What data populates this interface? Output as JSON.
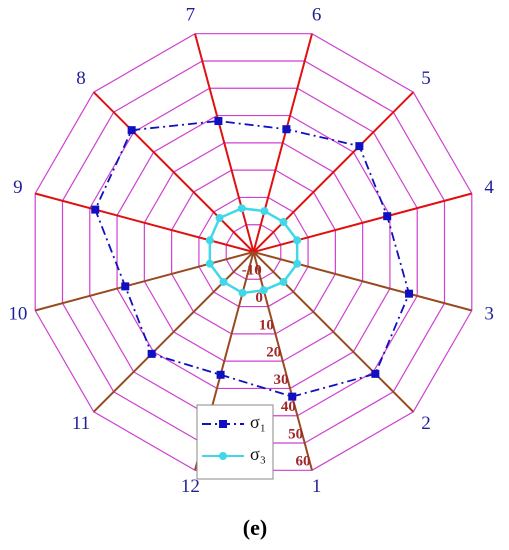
{
  "chart_data": {
    "type": "radar",
    "title": "(e)",
    "categories": [
      "1",
      "2",
      "3",
      "4",
      "5",
      "6",
      "7",
      "8",
      "9",
      "10",
      "11",
      "12"
    ],
    "rlim": [
      -20,
      60
    ],
    "rticks": [
      -10,
      0,
      10,
      20,
      30,
      40,
      50,
      60
    ],
    "series": [
      {
        "name": "σ₁",
        "color": "#1010c0",
        "marker": "square",
        "dash": "dashdot",
        "values": [
          33,
          41,
          37,
          29,
          33,
          25,
          28,
          41,
          38,
          27,
          31,
          25
        ]
      },
      {
        "name": "σ₃",
        "color": "#40d8e8",
        "marker": "circle",
        "dash": "solid",
        "values": [
          -6,
          -5,
          -4,
          -4,
          -5,
          -5,
          -4,
          -3,
          -4,
          -4,
          -5,
          -5
        ]
      }
    ]
  }
}
